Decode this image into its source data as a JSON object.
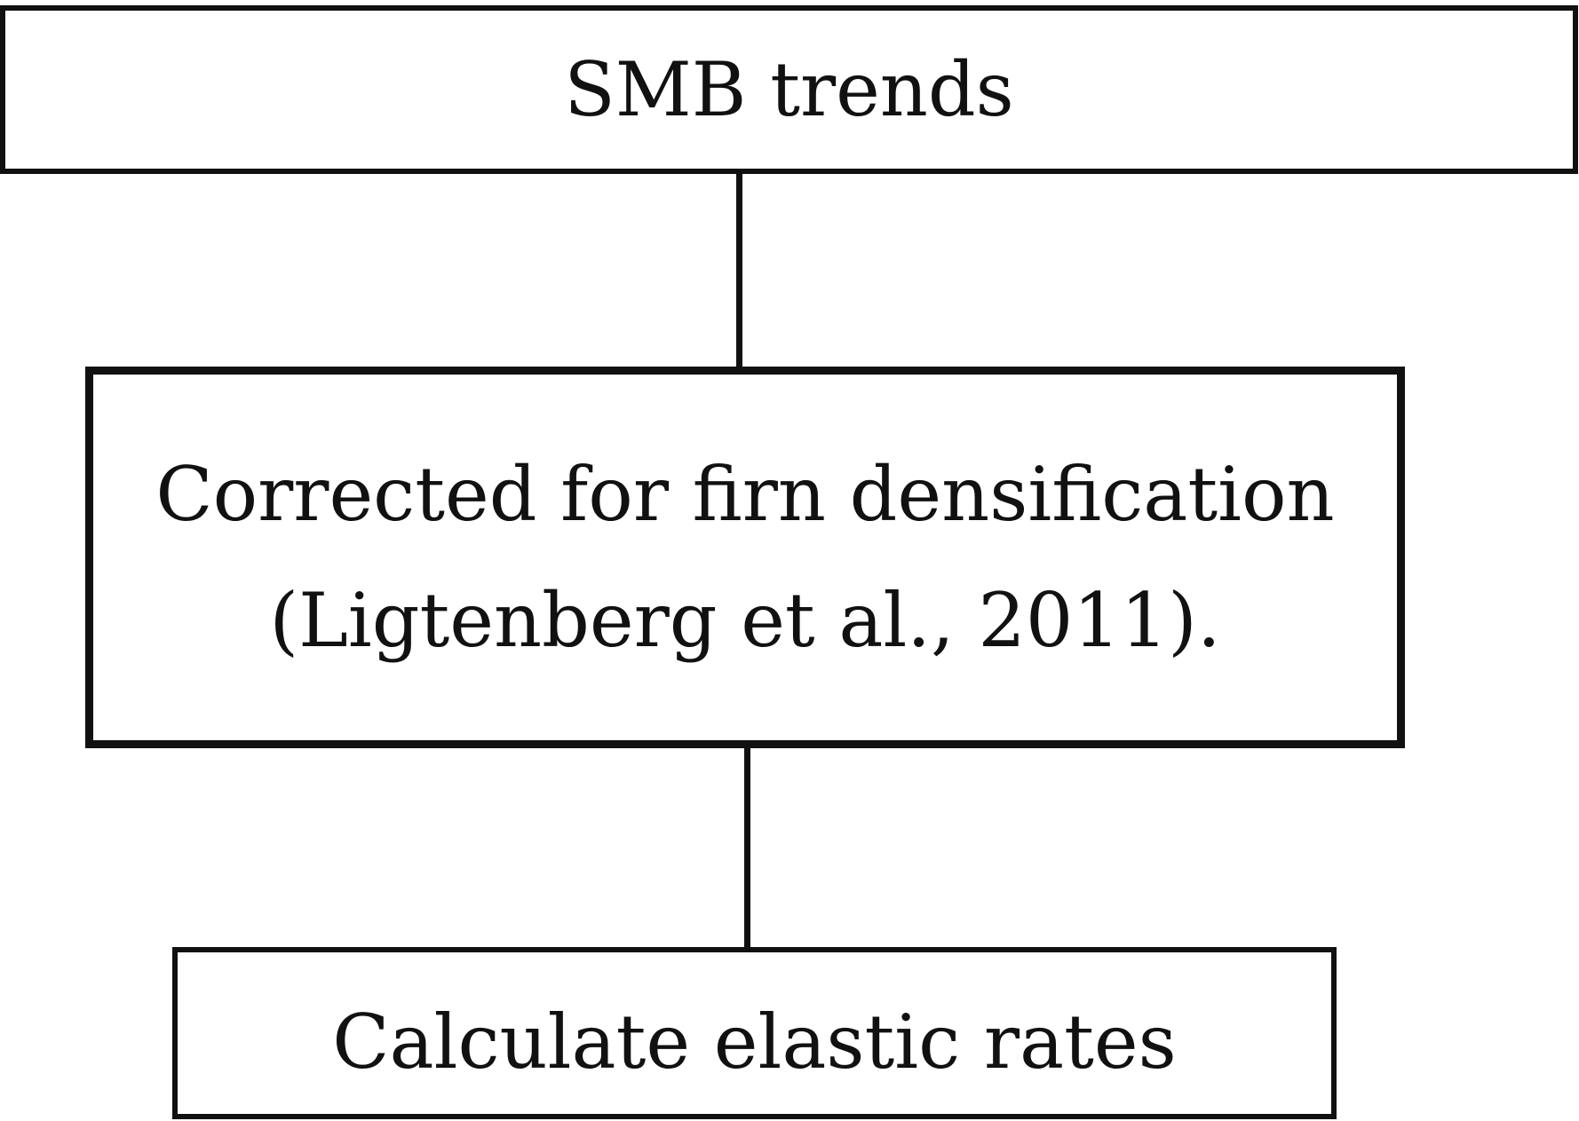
{
  "nodes": {
    "top": {
      "label": "SMB trends"
    },
    "middle": {
      "lines": [
        "Corrected for firn densification",
        "(Ligtenberg et al., 2011)."
      ]
    },
    "bottom": {
      "label": "Calculate elastic rates"
    }
  },
  "colors": {
    "stroke": "#111111",
    "background": "#ffffff",
    "text": "#111111"
  }
}
